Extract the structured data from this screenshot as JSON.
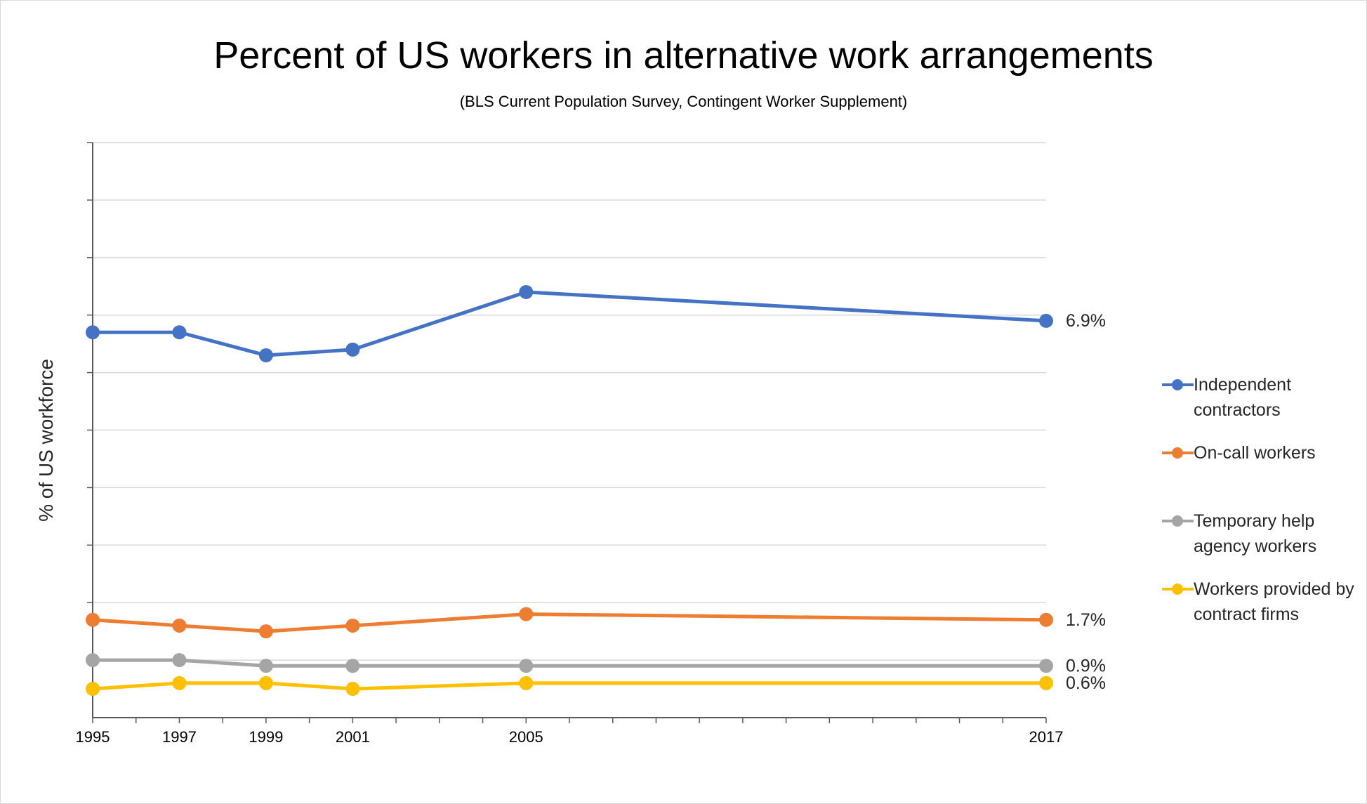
{
  "title": "Percent of US workers in alternative work arrangements",
  "subtitle": "(BLS Current Population Survey, Contingent Worker Supplement)",
  "chart_data": {
    "type": "line",
    "title": "Percent of US workers in alternative work arrangements",
    "subtitle": "(BLS Current Population Survey, Contingent Worker Supplement)",
    "xlabel": "",
    "ylabel": "% of US workforce",
    "x": [
      1995,
      1997,
      1999,
      2001,
      2005,
      2017
    ],
    "x_tick_labels": [
      "1995",
      "1997",
      "1999",
      "2001",
      "2005",
      "2017"
    ],
    "x_range": [
      1995,
      2017
    ],
    "ylim": [
      0,
      10
    ],
    "y_tick_step": 1,
    "y_tick_labels_shown": false,
    "grid": "horizontal",
    "legend_position": "right",
    "series": [
      {
        "name": "Independent contractors",
        "color": "#4472C4",
        "values": [
          6.7,
          6.7,
          6.3,
          6.4,
          7.4,
          6.9
        ],
        "end_label": "6.9%"
      },
      {
        "name": "On-call workers",
        "color": "#ED7D31",
        "values": [
          1.7,
          1.6,
          1.5,
          1.6,
          1.8,
          1.7
        ],
        "end_label": "1.7%"
      },
      {
        "name": "Temporary help agency workers",
        "color": "#A5A5A5",
        "values": [
          1.0,
          1.0,
          0.9,
          0.9,
          0.9,
          0.9
        ],
        "end_label": "0.9%"
      },
      {
        "name": "Workers provided by contract firms",
        "color": "#FFC000",
        "values": [
          0.5,
          0.6,
          0.6,
          0.5,
          0.6,
          0.6
        ],
        "end_label": "0.6%"
      }
    ]
  }
}
